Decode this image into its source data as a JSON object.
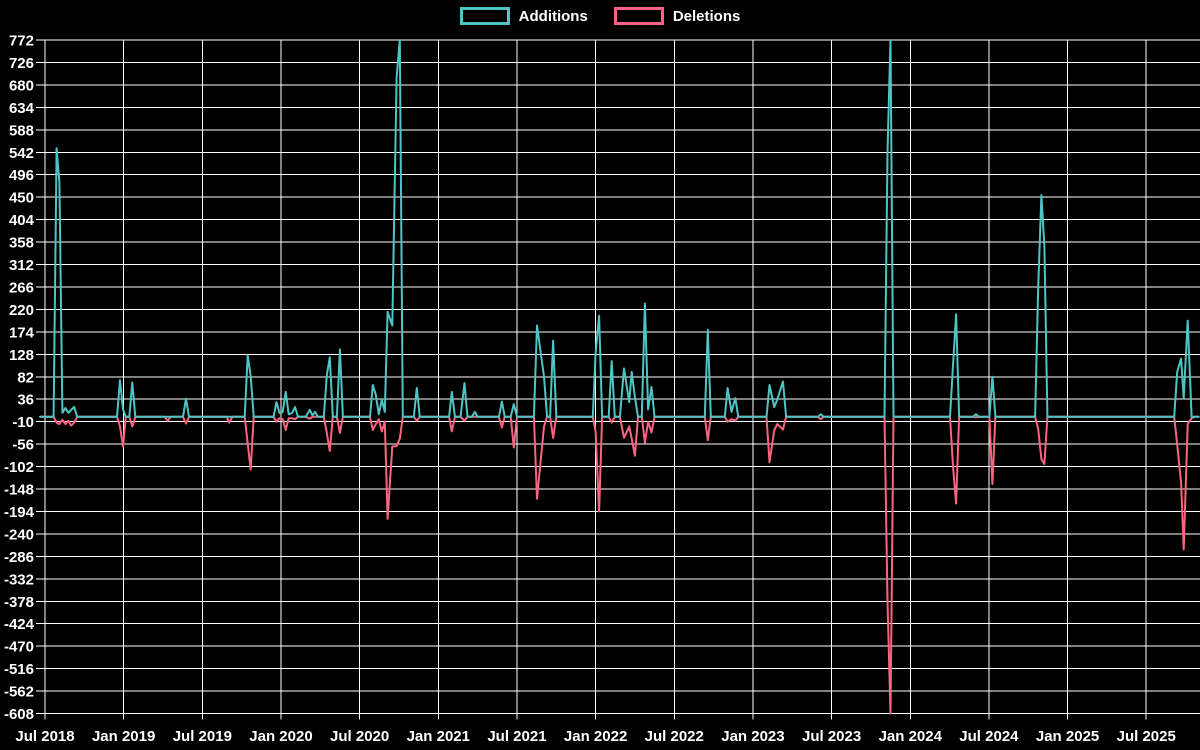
{
  "page": {
    "background": "#000000",
    "text_color": "#ffffff",
    "grid_color": "#ffffff"
  },
  "legend": {
    "items": [
      {
        "id": "additions",
        "label": "Additions",
        "color": "#4ec5c5"
      },
      {
        "id": "deletions",
        "label": "Deletions",
        "color": "#fb6480"
      }
    ]
  },
  "chart_data": {
    "type": "line",
    "title": "",
    "xlabel": "",
    "ylabel": "",
    "grid": true,
    "legend_position": "top-center",
    "series_names": [
      "Additions",
      "Deletions"
    ],
    "colors": {
      "additions": "#4ec5c5",
      "deletions": "#fb6480"
    },
    "y_axis": {
      "min": -608,
      "max": 772,
      "step": 46,
      "ticks": [
        772,
        726,
        680,
        634,
        588,
        542,
        496,
        450,
        404,
        358,
        312,
        266,
        220,
        174,
        128,
        82,
        36,
        -10,
        -56,
        -102,
        -148,
        -194,
        -240,
        -286,
        -332,
        -378,
        -424,
        -470,
        -516,
        -562,
        -608
      ]
    },
    "x_axis": {
      "start": "2018-07",
      "end": "2025-11",
      "tick_interval_months": 6,
      "tick_labels": [
        "Jul 2018",
        "Jan 2019",
        "Jul 2019",
        "Jan 2020",
        "Jul 2020",
        "Jan 2021",
        "Jul 2021",
        "Jan 2022",
        "Jul 2022",
        "Jan 2023",
        "Jul 2023",
        "Jan 2024",
        "Jul 2024",
        "Jan 2025",
        "Jul 2025"
      ]
    },
    "points_format": [
      "date",
      "additions",
      "deletions"
    ],
    "points": [
      [
        "2018-06-20",
        0,
        0
      ],
      [
        "2018-07-21",
        0,
        0
      ],
      [
        "2018-07-28",
        550,
        -12
      ],
      [
        "2018-08-04",
        480,
        -15
      ],
      [
        "2018-08-11",
        8,
        -6
      ],
      [
        "2018-08-18",
        18,
        -15
      ],
      [
        "2018-08-25",
        8,
        -8
      ],
      [
        "2018-09-01",
        14,
        -18
      ],
      [
        "2018-09-08",
        20,
        -12
      ],
      [
        "2018-09-15",
        0,
        0
      ],
      [
        "2018-12-16",
        0,
        0
      ],
      [
        "2018-12-23",
        75,
        -20
      ],
      [
        "2018-12-30",
        15,
        -61
      ],
      [
        "2019-01-06",
        0,
        0
      ],
      [
        "2019-01-14",
        0,
        0
      ],
      [
        "2019-01-21",
        70,
        -20
      ],
      [
        "2019-01-28",
        0,
        0
      ],
      [
        "2019-04-05",
        0,
        0
      ],
      [
        "2019-04-12",
        0,
        -8
      ],
      [
        "2019-04-19",
        0,
        0
      ],
      [
        "2019-05-17",
        0,
        0
      ],
      [
        "2019-05-24",
        37,
        -14
      ],
      [
        "2019-05-31",
        0,
        0
      ],
      [
        "2019-08-27",
        0,
        0
      ],
      [
        "2019-09-03",
        0,
        -12
      ],
      [
        "2019-09-10",
        0,
        0
      ],
      [
        "2019-10-08",
        0,
        0
      ],
      [
        "2019-10-15",
        126,
        -55
      ],
      [
        "2019-10-22",
        83,
        -108
      ],
      [
        "2019-10-29",
        0,
        0
      ],
      [
        "2019-12-14",
        0,
        0
      ],
      [
        "2019-12-21",
        30,
        -10
      ],
      [
        "2019-12-28",
        8,
        -3
      ],
      [
        "2020-01-05",
        10,
        -5
      ],
      [
        "2020-01-12",
        51,
        -27
      ],
      [
        "2020-01-19",
        5,
        -3
      ],
      [
        "2020-01-27",
        8,
        -3
      ],
      [
        "2020-02-03",
        20,
        -5
      ],
      [
        "2020-02-10",
        0,
        0
      ],
      [
        "2020-02-28",
        0,
        0
      ],
      [
        "2020-03-07",
        14,
        -4
      ],
      [
        "2020-03-13",
        3,
        0
      ],
      [
        "2020-03-19",
        10,
        0
      ],
      [
        "2020-03-26",
        0,
        0
      ],
      [
        "2020-04-09",
        0,
        0
      ],
      [
        "2020-04-16",
        85,
        -33
      ],
      [
        "2020-04-23",
        122,
        -70
      ],
      [
        "2020-04-30",
        0,
        0
      ],
      [
        "2020-05-09",
        0,
        0
      ],
      [
        "2020-05-16",
        138,
        -33
      ],
      [
        "2020-05-23",
        0,
        0
      ],
      [
        "2020-07-25",
        0,
        0
      ],
      [
        "2020-08-01",
        65,
        -27
      ],
      [
        "2020-08-08",
        45,
        -15
      ],
      [
        "2020-08-15",
        5,
        -5
      ],
      [
        "2020-08-22",
        35,
        -30
      ],
      [
        "2020-08-29",
        10,
        -10
      ],
      [
        "2020-09-05",
        215,
        -209
      ],
      [
        "2020-09-16",
        187,
        -61
      ],
      [
        "2020-09-26",
        695,
        -60
      ],
      [
        "2020-10-03",
        772,
        -45
      ],
      [
        "2020-10-10",
        0,
        0
      ],
      [
        "2020-11-05",
        0,
        0
      ],
      [
        "2020-11-12",
        59,
        -8
      ],
      [
        "2020-11-19",
        0,
        0
      ],
      [
        "2021-01-26",
        0,
        0
      ],
      [
        "2021-02-02",
        51,
        -30
      ],
      [
        "2021-02-09",
        0,
        0
      ],
      [
        "2021-02-22",
        0,
        0
      ],
      [
        "2021-03-01",
        69,
        -8
      ],
      [
        "2021-03-08",
        0,
        0
      ],
      [
        "2021-03-18",
        0,
        0
      ],
      [
        "2021-03-25",
        10,
        0
      ],
      [
        "2021-04-01",
        0,
        0
      ],
      [
        "2021-05-20",
        0,
        0
      ],
      [
        "2021-05-27",
        31,
        -22
      ],
      [
        "2021-06-03",
        0,
        0
      ],
      [
        "2021-06-17",
        0,
        0
      ],
      [
        "2021-06-24",
        26,
        -63
      ],
      [
        "2021-07-01",
        0,
        0
      ],
      [
        "2021-08-10",
        0,
        0
      ],
      [
        "2021-08-17",
        187,
        -168
      ],
      [
        "2021-09-03",
        82,
        -20
      ],
      [
        "2021-09-10",
        0,
        0
      ],
      [
        "2021-09-17",
        0,
        0
      ],
      [
        "2021-09-24",
        156,
        -43
      ],
      [
        "2021-10-01",
        0,
        0
      ],
      [
        "2021-12-25",
        0,
        0
      ],
      [
        "2022-01-01",
        130,
        -30
      ],
      [
        "2022-01-09",
        207,
        -194
      ],
      [
        "2022-01-16",
        0,
        0
      ],
      [
        "2022-02-01",
        0,
        0
      ],
      [
        "2022-02-08",
        114,
        -12
      ],
      [
        "2022-02-15",
        0,
        0
      ],
      [
        "2022-02-27",
        0,
        0
      ],
      [
        "2022-03-06",
        99,
        -43
      ],
      [
        "2022-03-18",
        30,
        -20
      ],
      [
        "2022-03-24",
        92,
        -45
      ],
      [
        "2022-04-01",
        40,
        -80
      ],
      [
        "2022-04-08",
        0,
        0
      ],
      [
        "2022-04-17",
        0,
        0
      ],
      [
        "2022-04-24",
        232,
        -53
      ],
      [
        "2022-05-01",
        15,
        -10
      ],
      [
        "2022-05-09",
        61,
        -32
      ],
      [
        "2022-05-16",
        0,
        0
      ],
      [
        "2022-09-11",
        0,
        0
      ],
      [
        "2022-09-18",
        178,
        -48
      ],
      [
        "2022-09-25",
        0,
        0
      ],
      [
        "2022-10-27",
        0,
        0
      ],
      [
        "2022-11-03",
        59,
        -10
      ],
      [
        "2022-11-12",
        10,
        -5
      ],
      [
        "2022-11-21",
        38,
        -8
      ],
      [
        "2022-11-28",
        0,
        0
      ],
      [
        "2023-02-02",
        0,
        0
      ],
      [
        "2023-02-09",
        65,
        -93
      ],
      [
        "2023-02-20",
        20,
        -28
      ],
      [
        "2023-02-27",
        35,
        -15
      ],
      [
        "2023-03-10",
        72,
        -26
      ],
      [
        "2023-03-17",
        0,
        0
      ],
      [
        "2023-05-30",
        0,
        0
      ],
      [
        "2023-06-06",
        5,
        -5
      ],
      [
        "2023-06-13",
        0,
        0
      ],
      [
        "2023-11-02",
        0,
        0
      ],
      [
        "2023-11-09",
        543,
        -378
      ],
      [
        "2023-11-16",
        772,
        -608
      ],
      [
        "2023-11-23",
        0,
        0
      ],
      [
        "2024-04-02",
        0,
        0
      ],
      [
        "2024-04-09",
        105,
        -101
      ],
      [
        "2024-04-16",
        210,
        -178
      ],
      [
        "2024-04-23",
        0,
        0
      ],
      [
        "2024-05-25",
        0,
        0
      ],
      [
        "2024-06-01",
        5,
        -1
      ],
      [
        "2024-06-08",
        0,
        0
      ],
      [
        "2024-07-02",
        0,
        0
      ],
      [
        "2024-07-09",
        82,
        -138
      ],
      [
        "2024-07-16",
        0,
        0
      ],
      [
        "2024-10-17",
        0,
        0
      ],
      [
        "2024-10-24",
        265,
        -25
      ],
      [
        "2024-11-01",
        454,
        -87
      ],
      [
        "2024-11-08",
        349,
        -97
      ],
      [
        "2024-11-15",
        0,
        0
      ],
      [
        "2025-09-05",
        0,
        0
      ],
      [
        "2025-09-12",
        92,
        -57
      ],
      [
        "2025-09-21",
        119,
        -135
      ],
      [
        "2025-09-27",
        38,
        -272
      ],
      [
        "2025-10-06",
        197,
        -15
      ],
      [
        "2025-10-15",
        0,
        -3
      ],
      [
        "2025-10-22",
        0,
        0
      ],
      [
        "2025-11-01",
        0,
        0
      ]
    ]
  }
}
